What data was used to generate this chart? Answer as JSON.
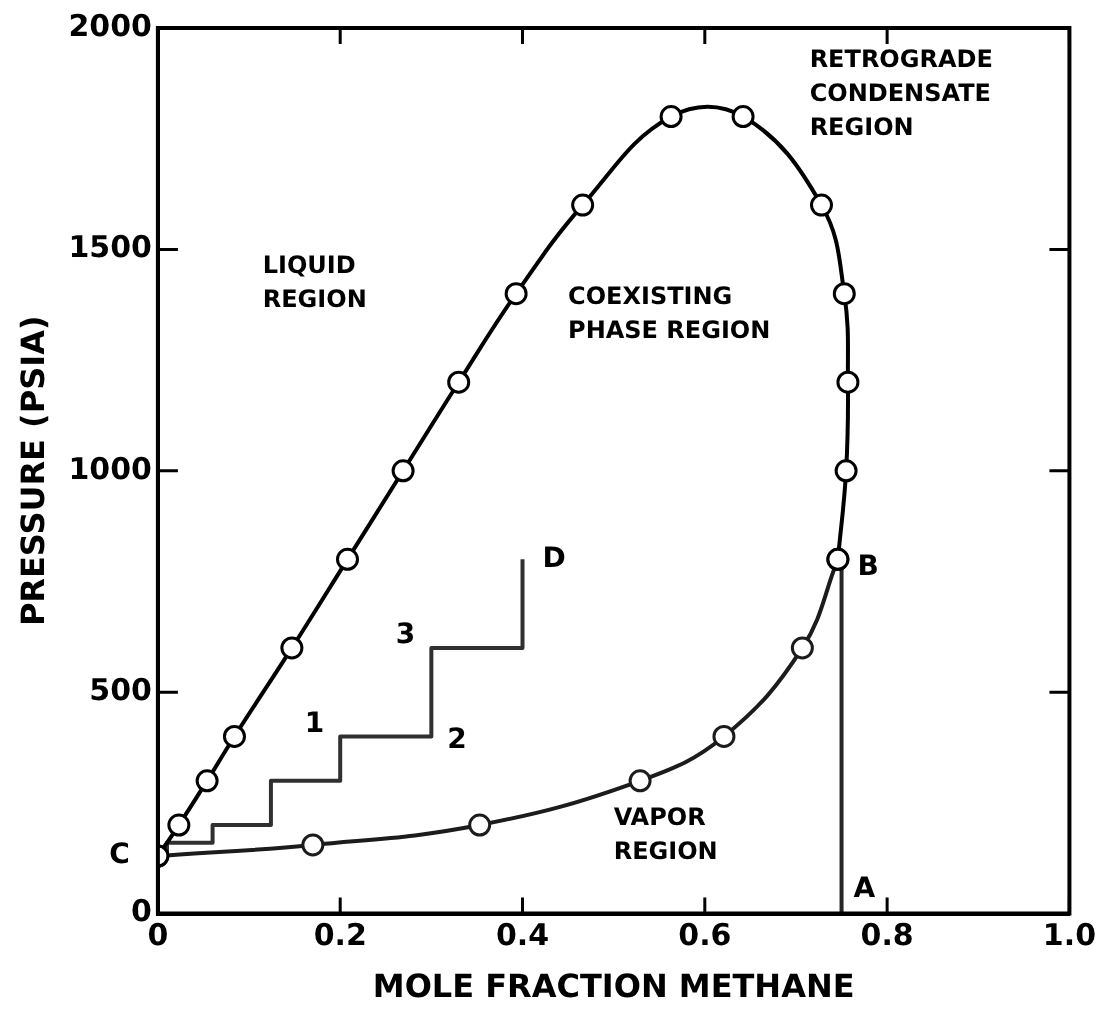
{
  "chart_data": {
    "type": "line",
    "xlabel": "MOLE FRACTION METHANE",
    "ylabel": "PRESSURE (PSIA)",
    "xlim": [
      0,
      1
    ],
    "ylim": [
      0,
      2000
    ],
    "xticks": [
      0,
      0.2,
      0.4,
      0.6,
      0.8,
      {
        "value": 1,
        "label": "1.0"
      }
    ],
    "yticks": [
      0,
      500,
      1000,
      1500,
      2000
    ],
    "series": [
      {
        "color": "#000000",
        "marker": "circle",
        "x": [
          0,
          0.023,
          0.054,
          0.084,
          0.147,
          0.208,
          0.269,
          0.33,
          0.393,
          0.466,
          0.563,
          0.642,
          0.728,
          0.753,
          0.757,
          0.755,
          0.746
        ],
        "values": [
          130,
          200,
          300,
          400,
          600,
          800,
          1000,
          1200,
          1400,
          1600,
          1800,
          1800,
          1600,
          1400,
          1200,
          1000,
          800
        ]
      },
      {
        "color": "#1c1c1c",
        "marker": "circle",
        "x": [
          0,
          0.17,
          0.353,
          0.529,
          0.621,
          0.707,
          0.746
        ],
        "values": [
          130,
          155,
          200,
          300,
          400,
          600,
          800
        ]
      },
      {
        "type": "step",
        "color": "#303030",
        "marker": "none",
        "x": [
          0,
          0.01,
          0.06,
          0.124,
          0.2,
          0.3,
          0.4
        ],
        "values": [
          130,
          160,
          200,
          300,
          400,
          600,
          800
        ]
      },
      {
        "color": "#262626",
        "marker": "none",
        "x": [
          0.75,
          0.75
        ],
        "values": [
          0,
          800
        ]
      }
    ],
    "annotations": [
      "LIQUID REGION",
      "COEXISTING PHASE REGION",
      "RETROGRADE CONDENSATE REGION",
      "VAPOR REGION",
      {
        "text": "C",
        "x": 0,
        "y": 130
      },
      {
        "text": "1",
        "x": 0.2,
        "y": 400
      },
      {
        "text": "2",
        "x": 0.3,
        "y": 400
      },
      {
        "text": "3",
        "x": 0.3,
        "y": 600
      },
      {
        "text": "D",
        "x": 0.4,
        "y": 800
      },
      {
        "text": "A",
        "x": 0.75,
        "y": 0
      },
      {
        "text": "B",
        "x": 0.75,
        "y": 800
      }
    ]
  }
}
